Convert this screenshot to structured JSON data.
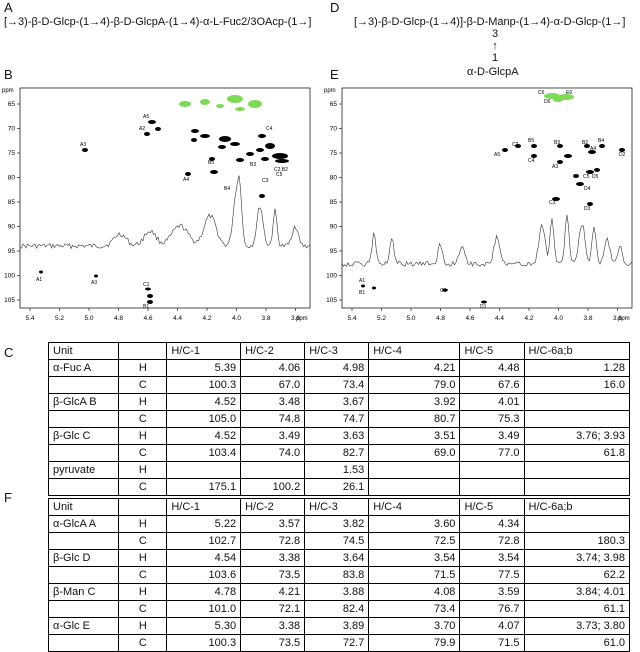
{
  "panels": {
    "A": {
      "label": "A",
      "structure": "[→3)-β-D-Glcp-(1→4)-β-D-GlcpA-(1→4)-α-L-Fuc2/3OAcp-(1→]"
    },
    "D": {
      "label": "D",
      "structure": "[→3)-β-D-Glcp-(1→4)]-β-D-Manp-(1→4)-α-D-Glcp-(1→]",
      "branch_num_top": "3",
      "branch_arrow": "↑",
      "branch_num_bottom": "1",
      "branch_residue": "α-D-GlcpA"
    },
    "B": {
      "label": "B",
      "y_unit": "ppm",
      "x_unit": "ppm",
      "x_ticks": [
        "5.4",
        "5.2",
        "5.0",
        "4.8",
        "4.6",
        "4.4",
        "4.2",
        "4.0",
        "3.8",
        "3.6"
      ],
      "y_ticks": [
        "65",
        "70",
        "75",
        "80",
        "85",
        "90",
        "95",
        "100",
        "105"
      ],
      "peak_labels": [
        "A5",
        "A2",
        "C4",
        "A3",
        "B3",
        "C2,B2",
        "C5",
        "B5",
        "A4",
        "C3",
        "B4",
        "A1",
        "A3",
        "C1",
        "B1"
      ]
    },
    "E": {
      "label": "E",
      "y_unit": "ppm",
      "x_unit": "ppm",
      "x_ticks": [
        "5.4",
        "5.2",
        "5.0",
        "4.8",
        "4.6",
        "4.4",
        "4.2",
        "4.0",
        "3.8",
        "3.6"
      ],
      "y_ticks": [
        "65",
        "70",
        "75",
        "80",
        "85",
        "90",
        "95",
        "100",
        "105"
      ],
      "peak_labels": [
        "C6",
        "D6",
        "E6",
        "A5",
        "C2",
        "B5",
        "B3",
        "B2",
        "A4",
        "B4",
        "D2",
        "C4",
        "A3",
        "C5",
        "D4",
        "D5",
        "C3",
        "D3",
        "B1",
        "A1",
        "C1",
        "D1"
      ]
    },
    "C": {
      "label": "C",
      "header": [
        "Unit",
        "",
        "H/C-1",
        "H/C-2",
        "H/C-3",
        "H/C-4",
        "H/C-5",
        "H/C-6a;b"
      ],
      "rows": [
        [
          "α-Fuc A",
          "H",
          "5.39",
          "4.06",
          "4.98",
          "4.21",
          "4.48",
          "1.28"
        ],
        [
          "",
          "C",
          "100.3",
          "67.0",
          "73.4",
          "79.0",
          "67.6",
          "16.0"
        ],
        [
          "β-GlcA B",
          "H",
          "4.52",
          "3.48",
          "3.67",
          "3.92",
          "4.01",
          ""
        ],
        [
          "",
          "C",
          "105.0",
          "74.8",
          "74.7",
          "80.7",
          "75.3",
          ""
        ],
        [
          "β-Glc C",
          "H",
          "4.52",
          "3.49",
          "3.63",
          "3.51",
          "3.49",
          "3.76; 3.93"
        ],
        [
          "",
          "C",
          "103.4",
          "74.0",
          "82.7",
          "69.0",
          "77.0",
          "61.8"
        ],
        [
          "pyruvate",
          "H",
          "",
          "",
          "1.53",
          "",
          "",
          ""
        ],
        [
          "",
          "C",
          "175.1",
          "100.2",
          "26.1",
          "",
          "",
          ""
        ]
      ]
    },
    "F": {
      "label": "F",
      "header": [
        "Unit",
        "",
        "H/C-1",
        "H/C-2",
        "H/C-3",
        "H/C-4",
        "H/C-5",
        "H/C-6a;b"
      ],
      "rows": [
        [
          "α-GlcA A",
          "H",
          "5.22",
          "3.57",
          "3.82",
          "3.60",
          "4.34",
          ""
        ],
        [
          "",
          "C",
          "102.7",
          "72.8",
          "74.5",
          "72.5",
          "72.8",
          "180.3"
        ],
        [
          "β-Glc D",
          "H",
          "4.54",
          "3.38",
          "3.64",
          "3.54",
          "3.54",
          "3.74; 3.98"
        ],
        [
          "",
          "C",
          "103.6",
          "73.5",
          "83.8",
          "71.5",
          "77.5",
          "62.2"
        ],
        [
          "β-Man C",
          "H",
          "4.78",
          "4.21",
          "3.88",
          "4.08",
          "3.59",
          "3.84; 4.01"
        ],
        [
          "",
          "C",
          "101.0",
          "72.1",
          "82.4",
          "73.4",
          "76.7",
          "61.1"
        ],
        [
          "α-Glc E",
          "H",
          "5.30",
          "3.38",
          "3.89",
          "3.70",
          "4.07",
          "3.73; 3.80"
        ],
        [
          "",
          "C",
          "100.3",
          "73.5",
          "72.7",
          "79.9",
          "71.5",
          "61.0"
        ]
      ]
    }
  },
  "colors": {
    "crosspeak": "#000000",
    "green_peak": "#7ed957",
    "axis": "#000000"
  }
}
